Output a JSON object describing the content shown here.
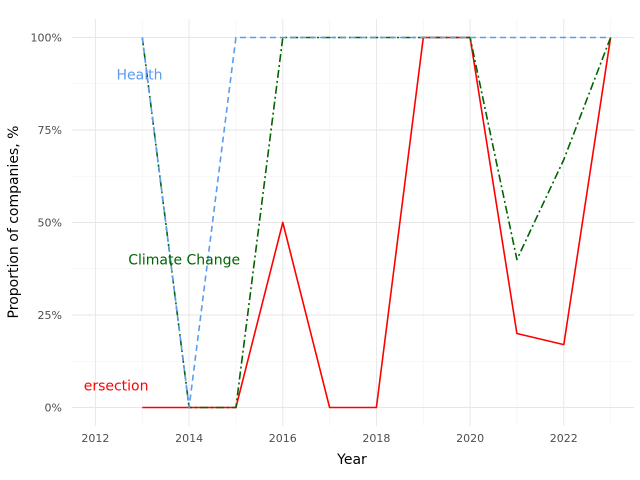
{
  "chart_data": {
    "type": "line",
    "xlabel": "Year",
    "ylabel": "Proportion of companies, %",
    "xlim": [
      2011.5,
      2023.5
    ],
    "ylim": [
      -0.05,
      1.05
    ],
    "x_ticks": [
      2012,
      2014,
      2016,
      2018,
      2020,
      2022
    ],
    "x_tick_labels": [
      "2012",
      "2014",
      "2016",
      "2018",
      "2020",
      "2022"
    ],
    "y_ticks": [
      0,
      0.25,
      0.5,
      0.75,
      1.0
    ],
    "y_tick_labels": [
      "0%",
      "25%",
      "50%",
      "75%",
      "100%"
    ],
    "grid": true,
    "series": [
      {
        "name": "ersection",
        "color": "#ff0000",
        "dash": "solid",
        "x": [
          2013,
          2014,
          2015,
          2016,
          2017,
          2018,
          2019,
          2020,
          2021,
          2022,
          2023
        ],
        "values": [
          0,
          0,
          0,
          0.5,
          0,
          0,
          1.0,
          1.0,
          0.2,
          0.17,
          1.0
        ]
      },
      {
        "name": "Climate Change",
        "color": "#006400",
        "dash": "dashdot",
        "x": [
          2013,
          2014,
          2015,
          2016,
          2017,
          2018,
          2019,
          2020,
          2021,
          2022,
          2023
        ],
        "values": [
          1.0,
          0,
          0,
          1.0,
          1.0,
          1.0,
          1.0,
          1.0,
          0.4,
          0.67,
          1.0
        ]
      },
      {
        "name": "Health",
        "color": "#5b9bf0",
        "dash": "dashed",
        "x": [
          2013,
          2014,
          2015,
          2016,
          2017,
          2018,
          2019,
          2020,
          2021,
          2022,
          2023
        ],
        "values": [
          1.0,
          0,
          1.0,
          1.0,
          1.0,
          1.0,
          1.0,
          1.0,
          1.0,
          1.0,
          1.0
        ]
      }
    ]
  }
}
